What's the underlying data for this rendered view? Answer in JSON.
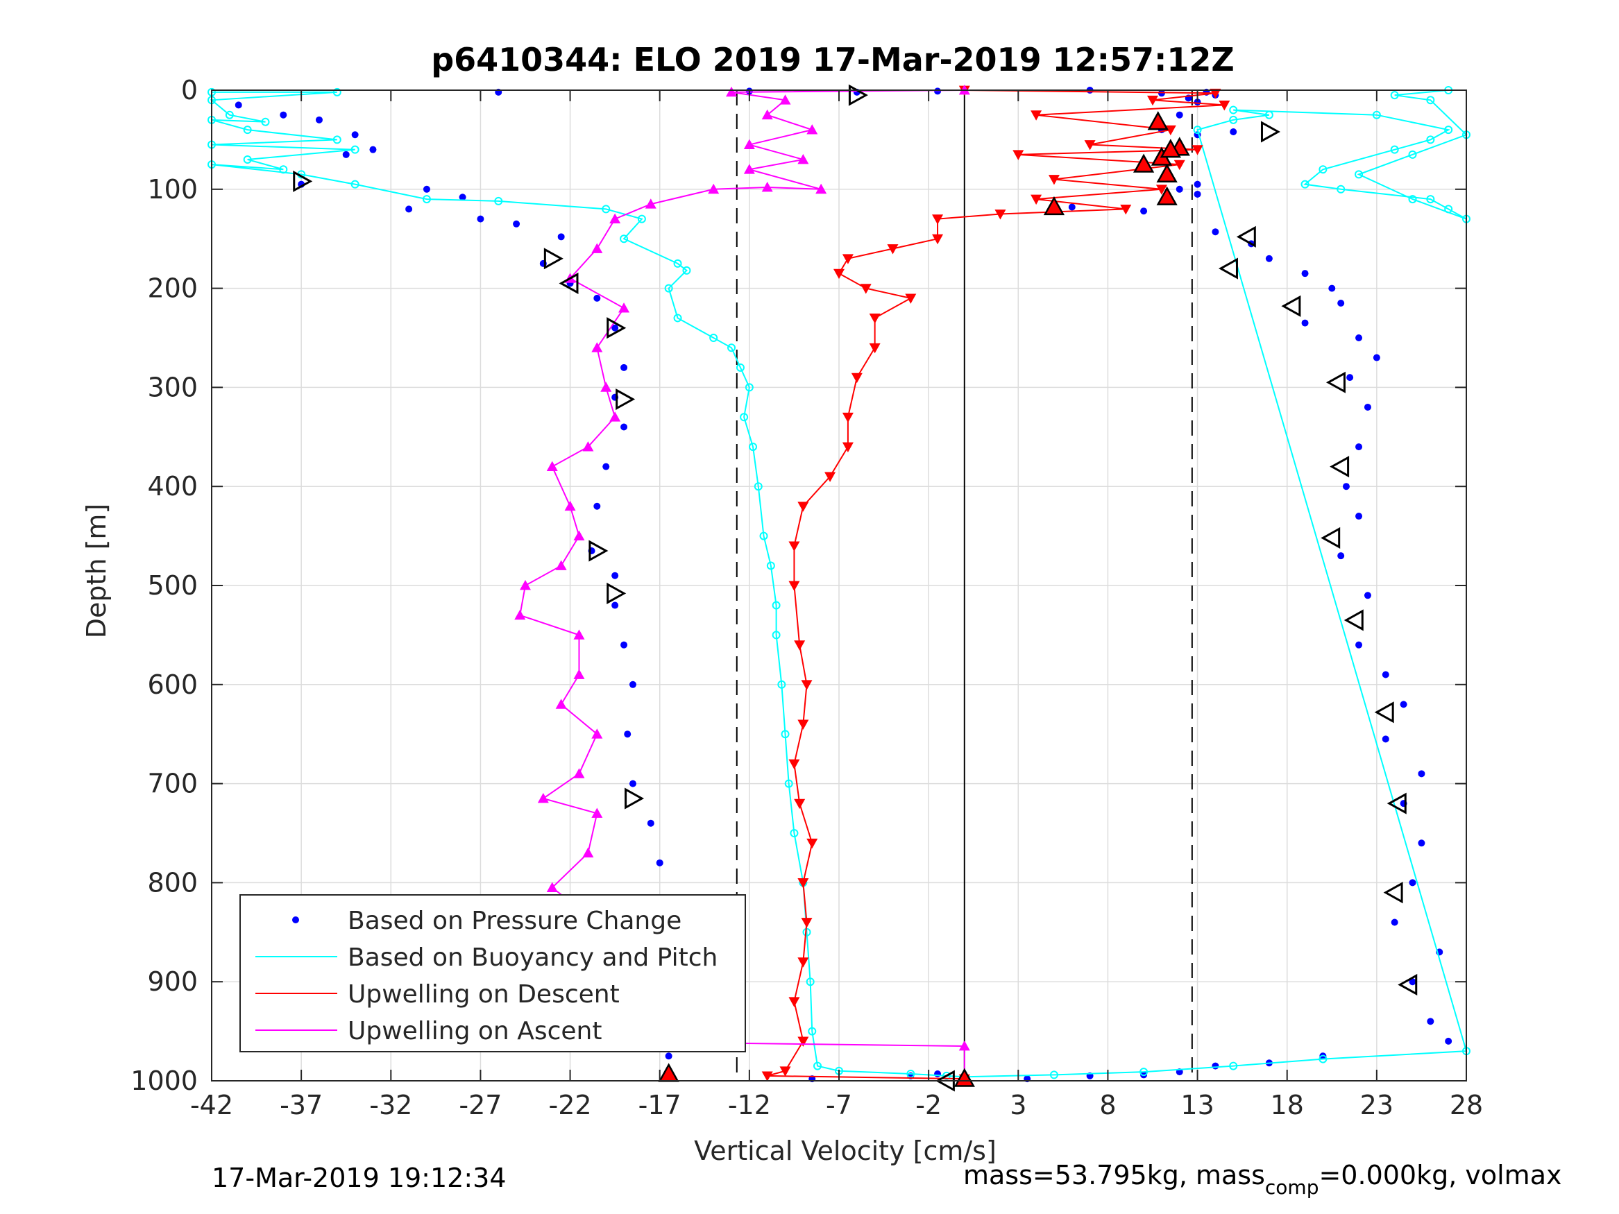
{
  "chart_data": {
    "type": "scatter",
    "title": "p6410344: ELO 2019 17-Mar-2019 12:57:12Z",
    "xlabel": "Vertical Velocity [cm/s]",
    "ylabel": "Depth [m]",
    "xlim": [
      -42,
      28
    ],
    "ylim": [
      0,
      1000
    ],
    "y_reversed": true,
    "grid": true,
    "xticks": [
      -42,
      -37,
      -32,
      -27,
      -22,
      -17,
      -12,
      -7,
      -2,
      3,
      8,
      13,
      18,
      23,
      28
    ],
    "yticks": [
      0,
      100,
      200,
      300,
      400,
      500,
      600,
      700,
      800,
      900,
      1000
    ],
    "reference_lines": {
      "solid_x": [
        0
      ],
      "dashed_x": [
        -12.7,
        12.7
      ]
    },
    "legend_position": "bottom-left",
    "series": [
      {
        "name": "Based on Pressure Change",
        "color": "#0000ff",
        "style": "dots",
        "points": [
          [
            -26,
            2
          ],
          [
            -12,
            1
          ],
          [
            -6,
            2
          ],
          [
            -1.5,
            1
          ],
          [
            7,
            0
          ],
          [
            11,
            3
          ],
          [
            13.5,
            2
          ],
          [
            14,
            5
          ],
          [
            12.5,
            8
          ],
          [
            13,
            12
          ],
          [
            12,
            25
          ],
          [
            11,
            40
          ],
          [
            13,
            45
          ],
          [
            15,
            42
          ],
          [
            12,
            55
          ],
          [
            11,
            70
          ],
          [
            13,
            95
          ],
          [
            12,
            100
          ],
          [
            13,
            105
          ],
          [
            6,
            118
          ],
          [
            10,
            122
          ],
          [
            14,
            143
          ],
          [
            16,
            155
          ],
          [
            17,
            170
          ],
          [
            19,
            185
          ],
          [
            20.5,
            200
          ],
          [
            21,
            215
          ],
          [
            19,
            235
          ],
          [
            22,
            250
          ],
          [
            23,
            270
          ],
          [
            21.5,
            290
          ],
          [
            22.5,
            320
          ],
          [
            22,
            360
          ],
          [
            21.3,
            400
          ],
          [
            22,
            430
          ],
          [
            21,
            470
          ],
          [
            22.5,
            510
          ],
          [
            22,
            560
          ],
          [
            23.5,
            590
          ],
          [
            24.5,
            620
          ],
          [
            23.5,
            655
          ],
          [
            25.5,
            690
          ],
          [
            24.5,
            720
          ],
          [
            25.5,
            760
          ],
          [
            25,
            800
          ],
          [
            24,
            840
          ],
          [
            26.5,
            870
          ],
          [
            25,
            900
          ],
          [
            26,
            940
          ],
          [
            27,
            960
          ],
          [
            -40.5,
            15
          ],
          [
            -38,
            25
          ],
          [
            -36,
            30
          ],
          [
            -34,
            45
          ],
          [
            -33,
            60
          ],
          [
            -34.5,
            65
          ],
          [
            -37,
            95
          ],
          [
            -30,
            100
          ],
          [
            -28,
            108
          ],
          [
            -31,
            120
          ],
          [
            -27,
            130
          ],
          [
            -25,
            135
          ],
          [
            -22.5,
            148
          ],
          [
            -23.5,
            175
          ],
          [
            -22,
            195
          ],
          [
            -20.5,
            210
          ],
          [
            -19.5,
            240
          ],
          [
            -19,
            280
          ],
          [
            -19.5,
            310
          ],
          [
            -19,
            340
          ],
          [
            -20,
            380
          ],
          [
            -20.5,
            420
          ],
          [
            -20.8,
            465
          ],
          [
            -19.5,
            490
          ],
          [
            -19.5,
            520
          ],
          [
            -19,
            560
          ],
          [
            -18.5,
            600
          ],
          [
            -18.8,
            650
          ],
          [
            -18.5,
            700
          ],
          [
            -17.5,
            740
          ],
          [
            -17,
            780
          ],
          [
            -17.5,
            820
          ],
          [
            -16.5,
            860
          ],
          [
            -16.2,
            900
          ],
          [
            -16.2,
            940
          ],
          [
            -16.5,
            975
          ],
          [
            -16.5,
            993
          ],
          [
            -8.5,
            998
          ],
          [
            -3,
            995
          ],
          [
            -1.5,
            993
          ],
          [
            0,
            998
          ],
          [
            3.5,
            998
          ],
          [
            7,
            995
          ],
          [
            10,
            994
          ],
          [
            12,
            991
          ],
          [
            14,
            985
          ],
          [
            17,
            982
          ],
          [
            20,
            975
          ]
        ]
      },
      {
        "name": "Based on Buoyancy and Pitch",
        "color": "#00ffff",
        "style": "line-with-circles",
        "points": [
          [
            -42,
            2
          ],
          [
            -35,
            2
          ],
          [
            -42,
            10
          ],
          [
            -41,
            25
          ],
          [
            -39,
            32
          ],
          [
            -42,
            30
          ],
          [
            -40,
            40
          ],
          [
            -35,
            50
          ],
          [
            -42,
            55
          ],
          [
            -34,
            60
          ],
          [
            -40,
            70
          ],
          [
            -38,
            80
          ],
          [
            -42,
            75
          ],
          [
            -37,
            85
          ],
          [
            -34,
            95
          ],
          [
            -30,
            110
          ],
          [
            -26,
            112
          ],
          [
            -20,
            120
          ],
          [
            -18,
            130
          ],
          [
            -19,
            150
          ],
          [
            -16,
            175
          ],
          [
            -15.5,
            182
          ],
          [
            -16.5,
            200
          ],
          [
            -16,
            230
          ],
          [
            -14,
            250
          ],
          [
            -13,
            260
          ],
          [
            -12.5,
            280
          ],
          [
            -12,
            300
          ],
          [
            -12.3,
            330
          ],
          [
            -11.8,
            360
          ],
          [
            -11.5,
            400
          ],
          [
            -11.2,
            450
          ],
          [
            -10.8,
            480
          ],
          [
            -10.5,
            520
          ],
          [
            -10.5,
            550
          ],
          [
            -10.2,
            600
          ],
          [
            -10,
            650
          ],
          [
            -9.8,
            700
          ],
          [
            -9.5,
            750
          ],
          [
            -9,
            800
          ],
          [
            -8.8,
            850
          ],
          [
            -8.6,
            900
          ],
          [
            -8.5,
            950
          ],
          [
            -8.2,
            985
          ],
          [
            -7,
            990
          ],
          [
            -3,
            993
          ],
          [
            -1,
            995
          ],
          [
            0,
            996
          ],
          [
            5,
            994
          ],
          [
            10,
            991
          ],
          [
            15,
            985
          ],
          [
            20,
            978
          ],
          [
            28,
            970
          ],
          [
            13,
            40
          ],
          [
            15,
            30
          ],
          [
            17,
            25
          ],
          [
            15,
            20
          ],
          [
            23,
            25
          ],
          [
            27,
            40
          ],
          [
            26,
            50
          ],
          [
            24,
            60
          ],
          [
            20,
            80
          ],
          [
            19,
            95
          ],
          [
            21,
            100
          ],
          [
            26,
            110
          ],
          [
            27,
            120
          ],
          [
            28,
            130
          ],
          [
            25,
            110
          ],
          [
            22,
            85
          ],
          [
            25,
            65
          ],
          [
            28,
            45
          ],
          [
            26,
            10
          ],
          [
            24,
            5
          ],
          [
            27,
            0
          ]
        ]
      },
      {
        "name": "Upwelling on Descent",
        "color": "#ff0000",
        "style": "line-with-down-triangles",
        "points": [
          [
            0,
            0
          ],
          [
            14,
            3
          ],
          [
            10.5,
            10
          ],
          [
            14.5,
            15
          ],
          [
            4,
            25
          ],
          [
            11.5,
            40
          ],
          [
            7,
            55
          ],
          [
            13,
            60
          ],
          [
            3,
            65
          ],
          [
            12,
            75
          ],
          [
            5,
            90
          ],
          [
            11,
            100
          ],
          [
            4,
            110
          ],
          [
            9,
            120
          ],
          [
            2,
            125
          ],
          [
            -1.5,
            130
          ],
          [
            -1.5,
            150
          ],
          [
            -4,
            160
          ],
          [
            -6.5,
            170
          ],
          [
            -7,
            185
          ],
          [
            -5.5,
            200
          ],
          [
            -3,
            210
          ],
          [
            -5,
            230
          ],
          [
            -5,
            260
          ],
          [
            -6,
            290
          ],
          [
            -6.5,
            330
          ],
          [
            -6.5,
            360
          ],
          [
            -7.5,
            390
          ],
          [
            -9,
            420
          ],
          [
            -9.5,
            460
          ],
          [
            -9.5,
            500
          ],
          [
            -9.2,
            560
          ],
          [
            -8.8,
            600
          ],
          [
            -9,
            640
          ],
          [
            -9.5,
            680
          ],
          [
            -9.2,
            720
          ],
          [
            -8.5,
            760
          ],
          [
            -9,
            800
          ],
          [
            -8.8,
            840
          ],
          [
            -9,
            880
          ],
          [
            -9.5,
            920
          ],
          [
            -9,
            960
          ],
          [
            -10,
            990
          ],
          [
            -11,
            995
          ],
          [
            0,
            998
          ]
        ]
      },
      {
        "name": "Upwelling on Ascent",
        "color": "#ff00ff",
        "style": "line-with-up-triangles",
        "points": [
          [
            0,
            998
          ],
          [
            0,
            965
          ],
          [
            -21.5,
            960
          ],
          [
            -19.5,
            950
          ],
          [
            -22,
            930
          ],
          [
            -19.5,
            900
          ],
          [
            -22.5,
            870
          ],
          [
            -20.5,
            840
          ],
          [
            -23,
            805
          ],
          [
            -21,
            770
          ],
          [
            -20.5,
            730
          ],
          [
            -23.5,
            715
          ],
          [
            -21.5,
            690
          ],
          [
            -20.5,
            650
          ],
          [
            -22.5,
            620
          ],
          [
            -21.5,
            590
          ],
          [
            -21.5,
            550
          ],
          [
            -24.8,
            530
          ],
          [
            -24.5,
            500
          ],
          [
            -22.5,
            480
          ],
          [
            -21.5,
            450
          ],
          [
            -22,
            420
          ],
          [
            -23,
            380
          ],
          [
            -21,
            360
          ],
          [
            -19.5,
            330
          ],
          [
            -20,
            300
          ],
          [
            -20.5,
            260
          ],
          [
            -19,
            220
          ],
          [
            -22,
            190
          ],
          [
            -20.5,
            160
          ],
          [
            -19.5,
            130
          ],
          [
            -17.5,
            115
          ],
          [
            -14,
            100
          ],
          [
            -11,
            98
          ],
          [
            -8,
            100
          ],
          [
            -12,
            80
          ],
          [
            -9,
            70
          ],
          [
            -12,
            55
          ],
          [
            -8.5,
            40
          ],
          [
            -11,
            25
          ],
          [
            -10,
            10
          ],
          [
            -13,
            2
          ],
          [
            0,
            0
          ]
        ]
      }
    ],
    "extra_markers": {
      "red_filled_up_triangles": [
        [
          -16.5,
          993
        ],
        [
          0,
          998
        ],
        [
          5,
          118
        ],
        [
          10,
          75
        ],
        [
          10.8,
          32
        ],
        [
          11.3,
          108
        ],
        [
          11.3,
          85
        ],
        [
          11,
          68
        ],
        [
          12,
          58
        ],
        [
          11.5,
          60
        ]
      ],
      "open_right_triangles": [
        [
          -37,
          92
        ],
        [
          -23,
          170
        ],
        [
          -19.5,
          240
        ],
        [
          -19,
          312
        ],
        [
          -20.5,
          465
        ],
        [
          -19.5,
          508
        ],
        [
          -18.5,
          715
        ],
        [
          17,
          42
        ],
        [
          -6,
          5
        ]
      ],
      "open_left_triangles": [
        [
          -22,
          195
        ],
        [
          15.8,
          148
        ],
        [
          14.8,
          180
        ],
        [
          18.3,
          218
        ],
        [
          20.8,
          295
        ],
        [
          21,
          380
        ],
        [
          20.5,
          452
        ],
        [
          21.8,
          535
        ],
        [
          23.5,
          628
        ],
        [
          24.2,
          720
        ],
        [
          24,
          810
        ],
        [
          24.8,
          903
        ],
        [
          -1,
          1000
        ]
      ]
    },
    "legend": [
      "Based on Pressure Change",
      "Based on Buoyancy and Pitch",
      "Upwelling on Descent",
      "Upwelling on Ascent"
    ]
  },
  "footer": {
    "timestamp": "17-Mar-2019 19:12:34",
    "mass_text_before": "mass=53.795kg, mass",
    "mass_subscript": "comp",
    "mass_text_after": "=0.000kg, volmax"
  }
}
